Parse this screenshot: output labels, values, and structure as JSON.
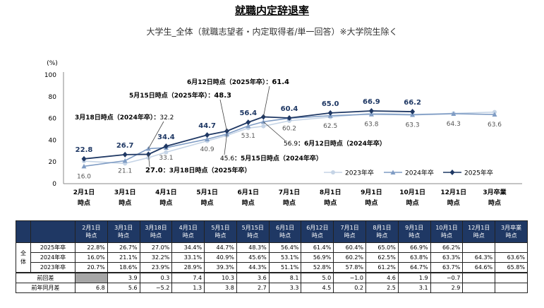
{
  "title": "就職内定辞退率",
  "subtitle": "大学生_全体（就職志望者・内定取得者/単一回答）※大学院生除く",
  "chart_data": {
    "type": "line",
    "y_unit": "(%)",
    "ylim": [
      0,
      100
    ],
    "yticks": [
      0,
      20,
      40,
      60,
      80,
      100
    ],
    "categories": [
      "2月1日時点",
      "3月1日時点",
      "3月18日時点",
      "4月1日時点",
      "5月1日時点",
      "5月15日時点",
      "6月1日時点",
      "6月12日時点",
      "7月1日時点",
      "8月1日時点",
      "9月1日時点",
      "10月1日時点",
      "12月1日時点",
      "3月卒業時点"
    ],
    "tick_labels": [
      [
        "2月1日",
        "時点"
      ],
      [
        "3月1日",
        "時点"
      ],
      [
        "4月1日",
        "時点"
      ],
      [
        "5月1日",
        "時点"
      ],
      [
        "6月1日",
        "時点"
      ],
      [
        "7月1日",
        "時点"
      ],
      [
        "8月1日",
        "時点"
      ],
      [
        "9月1日",
        "時点"
      ],
      [
        "10月1日",
        "時点"
      ],
      [
        "12月1日",
        "時点"
      ],
      [
        "3月卒業",
        "時点"
      ]
    ],
    "series": [
      {
        "name": "2023年卒",
        "color": "#c5d4e6",
        "marker": "circle",
        "values": [
          20.7,
          18.6,
          23.9,
          28.9,
          39.3,
          44.3,
          51.1,
          52.8,
          57.8,
          61.2,
          64.7,
          63.7,
          64.6,
          65.8
        ]
      },
      {
        "name": "2024年卒",
        "color": "#7f9cc4",
        "marker": "triangle",
        "values": [
          16.0,
          21.1,
          32.2,
          33.1,
          40.9,
          45.6,
          53.1,
          56.9,
          60.2,
          62.5,
          63.8,
          63.3,
          64.3,
          63.6
        ]
      },
      {
        "name": "2025年卒",
        "color": "#1f3864",
        "marker": "diamond",
        "values": [
          22.8,
          26.7,
          27.0,
          34.4,
          44.7,
          48.3,
          56.4,
          61.4,
          60.4,
          65.0,
          66.9,
          66.2,
          null,
          null
        ]
      }
    ],
    "labels_2025": [
      "22.8",
      "26.7",
      "",
      "34.4",
      "44.7",
      "",
      "56.4",
      "",
      "60.4",
      "65.0",
      "66.9",
      "66.2"
    ],
    "labels_2024": [
      "16.0",
      "21.1",
      "",
      "33.1",
      "40.9",
      "",
      "53.1",
      "",
      "60.2",
      "62.5",
      "63.8",
      "63.3",
      "64.3",
      "63.6"
    ],
    "annotations": {
      "mar18_2024": {
        "prefix": "3月18日時点（2024年卒）：",
        "value": "32.2"
      },
      "mar18_2025": {
        "value": "27.0",
        "suffix": "：3月18日時点（2025年卒）"
      },
      "may15_2025": {
        "prefix": "5月15日時点（2025年卒）：",
        "value": "48.3"
      },
      "may15_2024": {
        "value": "45.6",
        "suffix": "：5月15日時点（2024年卒）"
      },
      "jun12_2025": {
        "prefix": "6月12日時点（2025年卒）：",
        "value": "61.4"
      },
      "jun12_2024": {
        "value": "56.9",
        "suffix": "：6月12日時点（2024年卒）"
      }
    },
    "legend_position": "bottom-right"
  },
  "table": {
    "headers": [
      [
        "2月1日",
        "時点"
      ],
      [
        "3月1日",
        "時点"
      ],
      [
        "3月18日",
        "時点"
      ],
      [
        "4月1日",
        "時点"
      ],
      [
        "5月1日",
        "時点"
      ],
      [
        "5月15日",
        "時点"
      ],
      [
        "6月1日",
        "時点"
      ],
      [
        "6月12日",
        "時点"
      ],
      [
        "7月1日",
        "時点"
      ],
      [
        "8月1日",
        "時点"
      ],
      [
        "9月1日",
        "時点"
      ],
      [
        "10月1日",
        "時点"
      ],
      [
        "12月1日",
        "時点"
      ],
      [
        "3月卒業",
        "時点"
      ]
    ],
    "group_label": "全体",
    "rows": [
      {
        "label": "2025年卒",
        "cells": [
          "22.8%",
          "26.7%",
          "27.0%",
          "34.4%",
          "44.7%",
          "48.3%",
          "56.4%",
          "61.4%",
          "60.4%",
          "65.0%",
          "66.9%",
          "66.2%",
          "",
          ""
        ]
      },
      {
        "label": "2024年卒",
        "cells": [
          "16.0%",
          "21.1%",
          "32.2%",
          "33.1%",
          "40.9%",
          "45.6%",
          "53.1%",
          "56.9%",
          "60.2%",
          "62.5%",
          "63.8%",
          "63.3%",
          "64.3%",
          "63.6%"
        ]
      },
      {
        "label": "2023年卒",
        "cells": [
          "20.7%",
          "18.6%",
          "23.9%",
          "28.9%",
          "39.3%",
          "44.3%",
          "51.1%",
          "52.8%",
          "57.8%",
          "61.2%",
          "64.7%",
          "63.7%",
          "64.6%",
          "65.8%"
        ]
      },
      {
        "label": "前回差",
        "cells": [
          "",
          "3.9",
          "0.3",
          "7.4",
          "10.3",
          "3.6",
          "8.1",
          "5.0",
          "−1.0",
          "4.6",
          "1.9",
          "−0.7",
          "",
          ""
        ]
      },
      {
        "label": "前年同月差",
        "cells": [
          "6.8",
          "5.6",
          "−5.2",
          "1.3",
          "3.8",
          "2.7",
          "3.3",
          "4.5",
          "0.2",
          "2.5",
          "3.1",
          "2.9",
          "",
          ""
        ]
      }
    ]
  }
}
